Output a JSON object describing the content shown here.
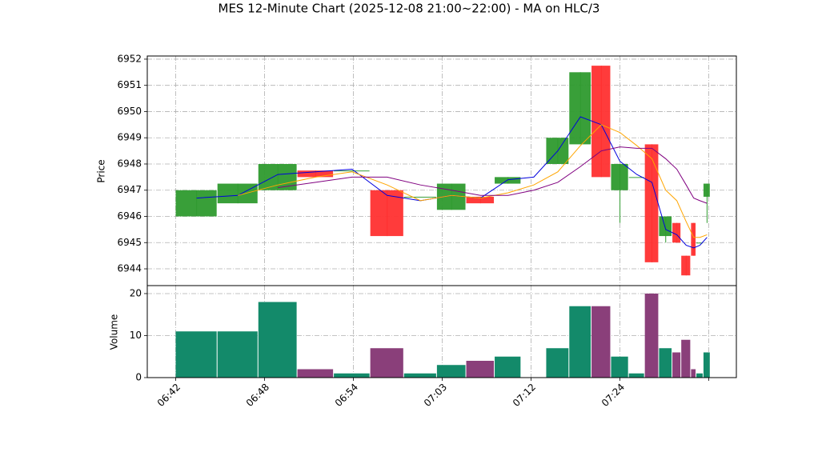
{
  "chart_data": {
    "type": "candlestick",
    "title": "MES 12-Minute Chart (2025-12-08 21:00~22:00) - MA on HLC/3",
    "ylabel": "Price",
    "x": [
      0,
      0.47,
      0.93,
      1.37,
      1.78,
      2.19,
      2.57,
      2.94,
      3.27,
      3.59,
      3.89,
      4.17,
      4.43,
      4.68,
      4.9,
      5.1,
      5.28,
      5.44,
      5.59,
      5.69,
      5.8,
      5.86,
      5.94
    ],
    "xlim": [
      -0.32,
      6.31
    ],
    "xticks": [
      {
        "value": 0,
        "label": "06:42"
      },
      {
        "value": 1,
        "label": "06:48"
      },
      {
        "value": 2,
        "label": "06:54"
      },
      {
        "value": 3,
        "label": "07:03"
      },
      {
        "value": 4,
        "label": "07:12"
      },
      {
        "value": 5,
        "label": "07:24"
      },
      {
        "value": 6,
        "label": null
      }
    ],
    "open": [
      6946,
      6946.5,
      6947,
      6947.75,
      6947.75,
      6947,
      6946.75,
      6946.25,
      6946.75,
      6947.25,
      null,
      6948,
      6948.75,
      6951.75,
      6947,
      6947.5,
      6948.75,
      6945.25,
      6945.75,
      6944.5,
      6945.75,
      6945,
      6946.75
    ],
    "high": [
      6947,
      6947.25,
      6948,
      6947.75,
      6947.75,
      6947,
      6946.75,
      6947.25,
      6946.75,
      6947.5,
      null,
      6949,
      6951.5,
      6951.75,
      6948,
      6947.5,
      6948.75,
      6946,
      6945.75,
      6944.5,
      6945.75,
      6945,
      6947.25
    ],
    "low": [
      6946,
      6946.5,
      6947,
      6947.5,
      6947.75,
      6945.25,
      6946.75,
      6946.25,
      6946.5,
      6947.25,
      null,
      6948,
      6948.75,
      6947.5,
      6945.75,
      6947.5,
      6944.25,
      6945,
      6945,
      6943.75,
      6944.5,
      6945,
      6945.75
    ],
    "close": [
      6947,
      6947.25,
      6948,
      6947.5,
      6947.75,
      6945.25,
      6946.75,
      6947.25,
      6946.5,
      6947.5,
      null,
      6949,
      6951.5,
      6947.5,
      6948,
      6947.5,
      6944.25,
      6946,
      6945,
      6943.75,
      6944.5,
      6945,
      6947.25
    ],
    "up_color": "#2e9a2e",
    "down_color": "#ff3030",
    "ylim": [
      6943.36,
      6952.12
    ],
    "yticks": [
      6944,
      6945,
      6946,
      6947,
      6948,
      6949,
      6950,
      6951,
      6952
    ],
    "grid": true,
    "series": [
      {
        "color": "#0000dd",
        "values": [
          6946.7,
          6946.8,
          6947.6,
          6947.7,
          6947.8,
          6946.8,
          6946.6,
          6946.8,
          6946.7,
          6947.4,
          6947.5,
          6948.5,
          6949.8,
          6949.5,
          6948.1,
          6947.6,
          6947.3,
          6945.5,
          6945.3,
          6944.9,
          6944.8,
          6944.9,
          6945.2
        ]
      },
      {
        "color": "#ffa500",
        "values": [
          null,
          6946.8,
          6947.2,
          6947.5,
          6947.7,
          6947.2,
          6946.6,
          6946.8,
          6946.7,
          6946.9,
          6947.2,
          6947.7,
          6948.7,
          6949.5,
          6949.2,
          6948.7,
          6948.2,
          6947,
          6946.6,
          6945.8,
          6945.2,
          6945.2,
          6945.3
        ]
      },
      {
        "color": "#800080",
        "values": [
          null,
          null,
          6947.1,
          6947.3,
          6947.5,
          6947.5,
          6947.2,
          6947.0,
          6946.8,
          6946.8,
          6947,
          6947.3,
          6947.9,
          6948.5,
          6948.65,
          6948.6,
          6948.6,
          6948.2,
          6947.8,
          6947.2,
          6946.7,
          6946.6,
          6946.5
        ]
      }
    ],
    "volume": {
      "ylabel": "Volume",
      "values": [
        11,
        11,
        18,
        2,
        1,
        7,
        1,
        3,
        4,
        5,
        0,
        7,
        17,
        17,
        5,
        1,
        20,
        7,
        6,
        9,
        2,
        1,
        6
      ],
      "up_color": "#138a6a",
      "down_color": "#8a3f7a",
      "ylim": [
        0,
        21.9
      ],
      "yticks": [
        0,
        10,
        20
      ]
    }
  }
}
